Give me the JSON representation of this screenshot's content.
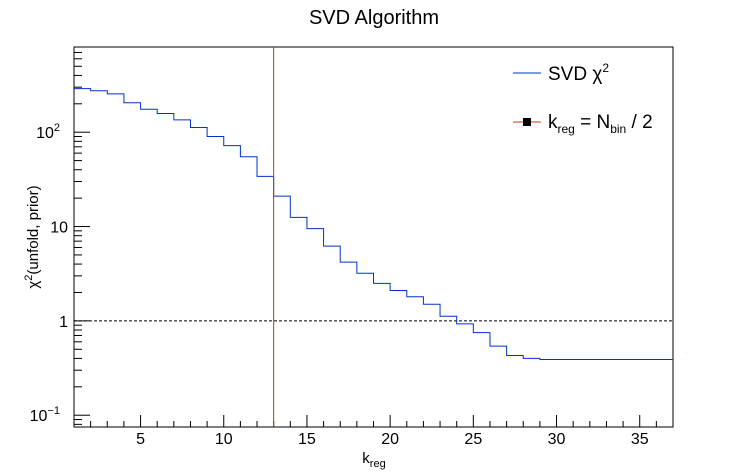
{
  "chart_data": {
    "type": "line",
    "title": "SVD Algorithm",
    "xlabel": {
      "base": "k",
      "sub": "reg"
    },
    "ylabel": {
      "pre": "χ",
      "sup": "2",
      "post": "(unfold, prior)"
    },
    "xlim": [
      1,
      37
    ],
    "ylim": [
      0.075,
      800
    ],
    "log_y": true,
    "x_ticks": [
      "5",
      "10",
      "15",
      "20",
      "25",
      "30",
      "35"
    ],
    "y_ticks": [
      {
        "value": 0.1,
        "base": "10",
        "sup": "−1"
      },
      {
        "value": 1,
        "base": "1",
        "sup": ""
      },
      {
        "value": 10,
        "base": "10",
        "sup": ""
      },
      {
        "value": 100,
        "base": "10",
        "sup": "2"
      }
    ],
    "series": [
      {
        "name": {
          "base": "SVD χ",
          "sup": "2"
        },
        "color": "#0033cc",
        "style": "step",
        "x": [
          1,
          2,
          3,
          4,
          5,
          6,
          7,
          8,
          9,
          10,
          11,
          12,
          13,
          14,
          15,
          16,
          17,
          18,
          19,
          20,
          21,
          22,
          23,
          24,
          25,
          26,
          27,
          28,
          29,
          30,
          31,
          32,
          33,
          34,
          35,
          36
        ],
        "values": [
          290,
          275,
          255,
          205,
          175,
          158,
          135,
          112,
          90,
          72,
          55,
          34,
          21,
          12.5,
          9.5,
          6.2,
          4.2,
          3.2,
          2.5,
          2.1,
          1.8,
          1.5,
          1.12,
          0.93,
          0.75,
          0.54,
          0.43,
          0.4,
          0.39,
          0.39,
          0.39,
          0.39,
          0.39,
          0.39,
          0.39,
          0.39
        ]
      }
    ],
    "reference_line": {
      "y": 1,
      "style": "dashed",
      "color": "#000000"
    },
    "kreg_line": {
      "x": 13,
      "color": "#cc3311",
      "legend": {
        "base": "k",
        "sub": "reg",
        "mid": " = N",
        "sub2": "bin",
        "post": " / 2"
      }
    },
    "legend_position": "top-right",
    "grid": false
  }
}
